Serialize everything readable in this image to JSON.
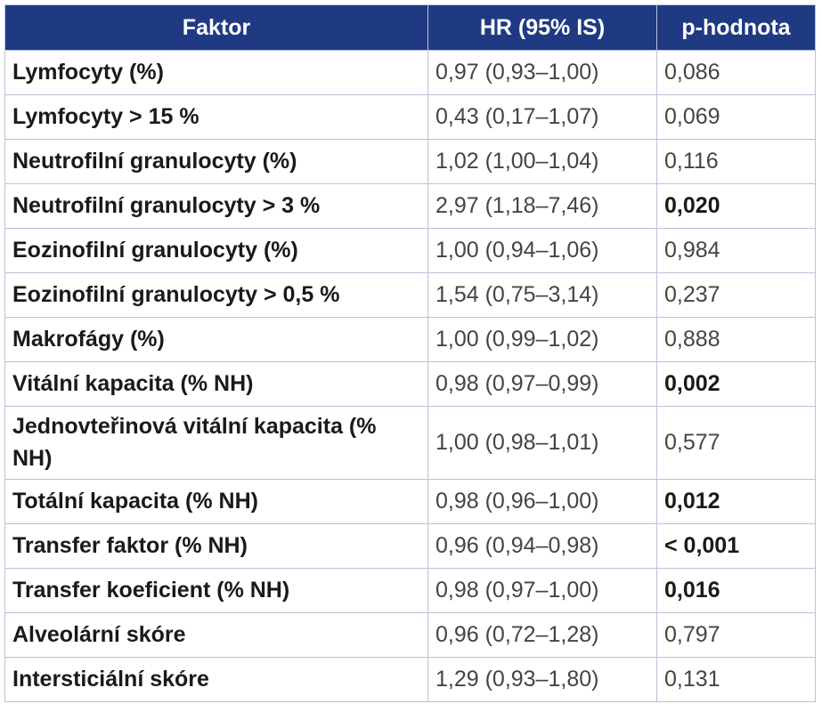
{
  "table": {
    "header": [
      "Faktor",
      "HR (95% IS)",
      "p-hodnota"
    ],
    "rows": [
      {
        "factor": "Lymfocyty (%)",
        "hr": "0,97 (0,93–1,00)",
        "p": "0,086",
        "p_bold": false
      },
      {
        "factor": "Lymfocyty > 15 %",
        "hr": "0,43 (0,17–1,07)",
        "p": "0,069",
        "p_bold": false
      },
      {
        "factor": "Neutrofilní granulocyty (%)",
        "hr": "1,02 (1,00–1,04)",
        "p": "0,116",
        "p_bold": false
      },
      {
        "factor": "Neutrofilní granulocyty > 3 %",
        "hr": "2,97 (1,18–7,46)",
        "p": "0,020",
        "p_bold": true
      },
      {
        "factor": "Eozinofilní granulocyty (%)",
        "hr": "1,00 (0,94–1,06)",
        "p": "0,984",
        "p_bold": false
      },
      {
        "factor": "Eozinofilní granulocyty > 0,5 %",
        "hr": "1,54 (0,75–3,14)",
        "p": "0,237",
        "p_bold": false
      },
      {
        "factor": "Makrofágy (%)",
        "hr": "1,00 (0,99–1,02)",
        "p": "0,888",
        "p_bold": false
      },
      {
        "factor": "Vitální kapacita (% NH)",
        "hr": "0,98 (0,97–0,99)",
        "p": "0,002",
        "p_bold": true
      },
      {
        "factor": "Jednovteřinová vitální kapacita (% NH)",
        "hr": "1,00 (0,98–1,01)",
        "p": "0,577",
        "p_bold": false
      },
      {
        "factor": "Totální kapacita (% NH)",
        "hr": "0,98 (0,96–1,00)",
        "p": "0,012",
        "p_bold": true
      },
      {
        "factor": "Transfer faktor (% NH)",
        "hr": "0,96 (0,94–0,98)",
        "p": "< 0,001",
        "p_bold": true
      },
      {
        "factor": "Transfer koeficient (% NH)",
        "hr": "0,98 (0,97–1,00)",
        "p": "0,016",
        "p_bold": true
      },
      {
        "factor": "Alveolární skóre",
        "hr": "0,96 (0,72–1,28)",
        "p": "0,797",
        "p_bold": false
      },
      {
        "factor": "Intersticiální skóre",
        "hr": "1,29 (0,93–1,80)",
        "p": "0,131",
        "p_bold": false
      }
    ]
  }
}
